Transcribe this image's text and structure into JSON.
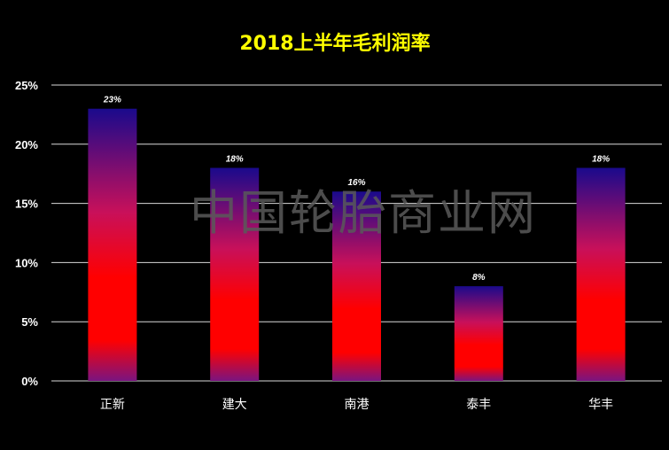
{
  "chart_data": {
    "type": "bar",
    "title": "2018上半年毛利润率",
    "categories": [
      "正新",
      "建大",
      "南港",
      "泰丰",
      "华丰"
    ],
    "values": [
      23,
      18,
      16,
      8,
      18
    ],
    "data_labels": [
      "23%",
      "18%",
      "16%",
      "8%",
      "18%"
    ],
    "yticks": [
      "0%",
      "5%",
      "10%",
      "15%",
      "20%",
      "25%"
    ],
    "ylim": [
      0,
      25
    ],
    "grid": true,
    "legend": "none"
  },
  "watermark": "中国轮胎商业网",
  "colors": {
    "background": "#000000",
    "title": "#FFFF00",
    "grid": "#D9D9D9",
    "text": "#FFFFFF",
    "watermark": "#595959",
    "bar_top": "#1A0A8C",
    "bar_mid": "#C8105A",
    "bar_low": "#FF0000",
    "bar_base": "#7A1480"
  }
}
